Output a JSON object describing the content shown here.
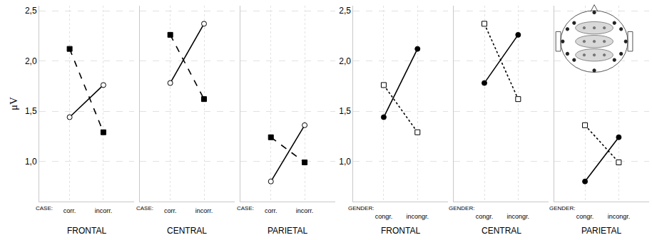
{
  "chart_data": [
    {
      "type": "line",
      "title": "FRONTAL",
      "x_label": "CASE:",
      "ylabel": "μV",
      "categories": [
        "corr.",
        "incorr."
      ],
      "series": [
        {
          "color": "#000000",
          "marker": "square",
          "line_style": "dash",
          "values": [
            2.12,
            1.29
          ]
        },
        {
          "color": "#000000",
          "marker": "circle-open",
          "line_style": "solid",
          "values": [
            1.44,
            1.76
          ]
        }
      ],
      "ylim": [
        0.6,
        2.55
      ],
      "yticks": [
        {
          "value": 1,
          "label": "1,0"
        },
        {
          "value": 1.5,
          "label": "1,5"
        },
        {
          "value": 2,
          "label": "2,0"
        },
        {
          "value": 2.5,
          "label": "2,5"
        }
      ],
      "grid": true
    },
    {
      "type": "line",
      "title": "CENTRAL",
      "x_label": "CASE:",
      "categories": [
        "corr.",
        "incorr."
      ],
      "series": [
        {
          "color": "#000000",
          "marker": "square",
          "line_style": "dash",
          "values": [
            2.26,
            1.62
          ]
        },
        {
          "color": "#000000",
          "marker": "circle-open",
          "line_style": "solid",
          "values": [
            1.78,
            2.37
          ]
        }
      ],
      "ylim": [
        0.6,
        2.55
      ],
      "yticks": [
        {
          "value": 1,
          "label": "1,0"
        },
        {
          "value": 1.5,
          "label": "1,5"
        },
        {
          "value": 2,
          "label": "2,0"
        },
        {
          "value": 2.5,
          "label": "2,5"
        }
      ],
      "grid": true,
      "tick_labels": "x"
    },
    {
      "type": "line",
      "title": "PARIETAL",
      "x_label": "CASE:",
      "categories": [
        "corr.",
        "incorr."
      ],
      "series": [
        {
          "color": "#000000",
          "marker": "square",
          "line_style": "dash",
          "values": [
            1.24,
            0.99
          ]
        },
        {
          "color": "#000000",
          "marker": "circle-open",
          "line_style": "solid",
          "values": [
            0.8,
            1.36
          ]
        }
      ],
      "ylim": [
        0.6,
        2.55
      ],
      "yticks": [
        {
          "value": 1,
          "label": "1,0"
        },
        {
          "value": 1.5,
          "label": "1,5"
        },
        {
          "value": 2,
          "label": "2,0"
        },
        {
          "value": 2.5,
          "label": "2,5"
        }
      ],
      "grid": true,
      "tick_labels": "x"
    },
    {
      "type": "line",
      "title": "FRONTAL",
      "x_label": "GENDER:",
      "categories": [
        "congr.",
        "incongr."
      ],
      "series": [
        {
          "color": "#000000",
          "marker": "circle",
          "line_style": "solid",
          "values": [
            1.44,
            2.12
          ]
        },
        {
          "color": "#000000",
          "marker": "square-open",
          "line_style": "dot",
          "values": [
            1.76,
            1.29
          ]
        }
      ],
      "ylim": [
        0.6,
        2.55
      ],
      "yticks": [
        {
          "value": 1,
          "label": "1,0"
        },
        {
          "value": 1.5,
          "label": "1,5"
        },
        {
          "value": 2,
          "label": "2,0"
        },
        {
          "value": 2.5,
          "label": "2,5"
        }
      ],
      "grid": true
    },
    {
      "type": "line",
      "title": "CENTRAL",
      "x_label": "GENDER:",
      "categories": [
        "congr.",
        "incongr."
      ],
      "series": [
        {
          "color": "#000000",
          "marker": "circle",
          "line_style": "solid",
          "values": [
            1.78,
            2.26
          ]
        },
        {
          "color": "#000000",
          "marker": "square-open",
          "line_style": "dot",
          "values": [
            2.37,
            1.62
          ]
        }
      ],
      "ylim": [
        0.6,
        2.55
      ],
      "yticks": [
        {
          "value": 1,
          "label": "1,0"
        },
        {
          "value": 1.5,
          "label": "1,5"
        },
        {
          "value": 2,
          "label": "2,0"
        },
        {
          "value": 2.5,
          "label": "2,5"
        }
      ],
      "grid": true,
      "tick_labels": "x"
    },
    {
      "type": "line",
      "title": "PARIETAL",
      "x_label": "GENDER:",
      "categories": [
        "congr.",
        "incongr."
      ],
      "series": [
        {
          "color": "#000000",
          "marker": "circle",
          "line_style": "solid",
          "values": [
            0.8,
            1.24
          ]
        },
        {
          "color": "#000000",
          "marker": "square-open",
          "line_style": "dot",
          "values": [
            1.36,
            0.99
          ]
        }
      ],
      "ylim": [
        0.6,
        2.55
      ],
      "yticks": [
        {
          "value": 1,
          "label": "1,0"
        },
        {
          "value": 1.5,
          "label": "1,5"
        },
        {
          "value": 2,
          "label": "2,0"
        },
        {
          "value": 2.5,
          "label": "2,5"
        }
      ],
      "grid": true,
      "tick_labels": "x"
    }
  ]
}
